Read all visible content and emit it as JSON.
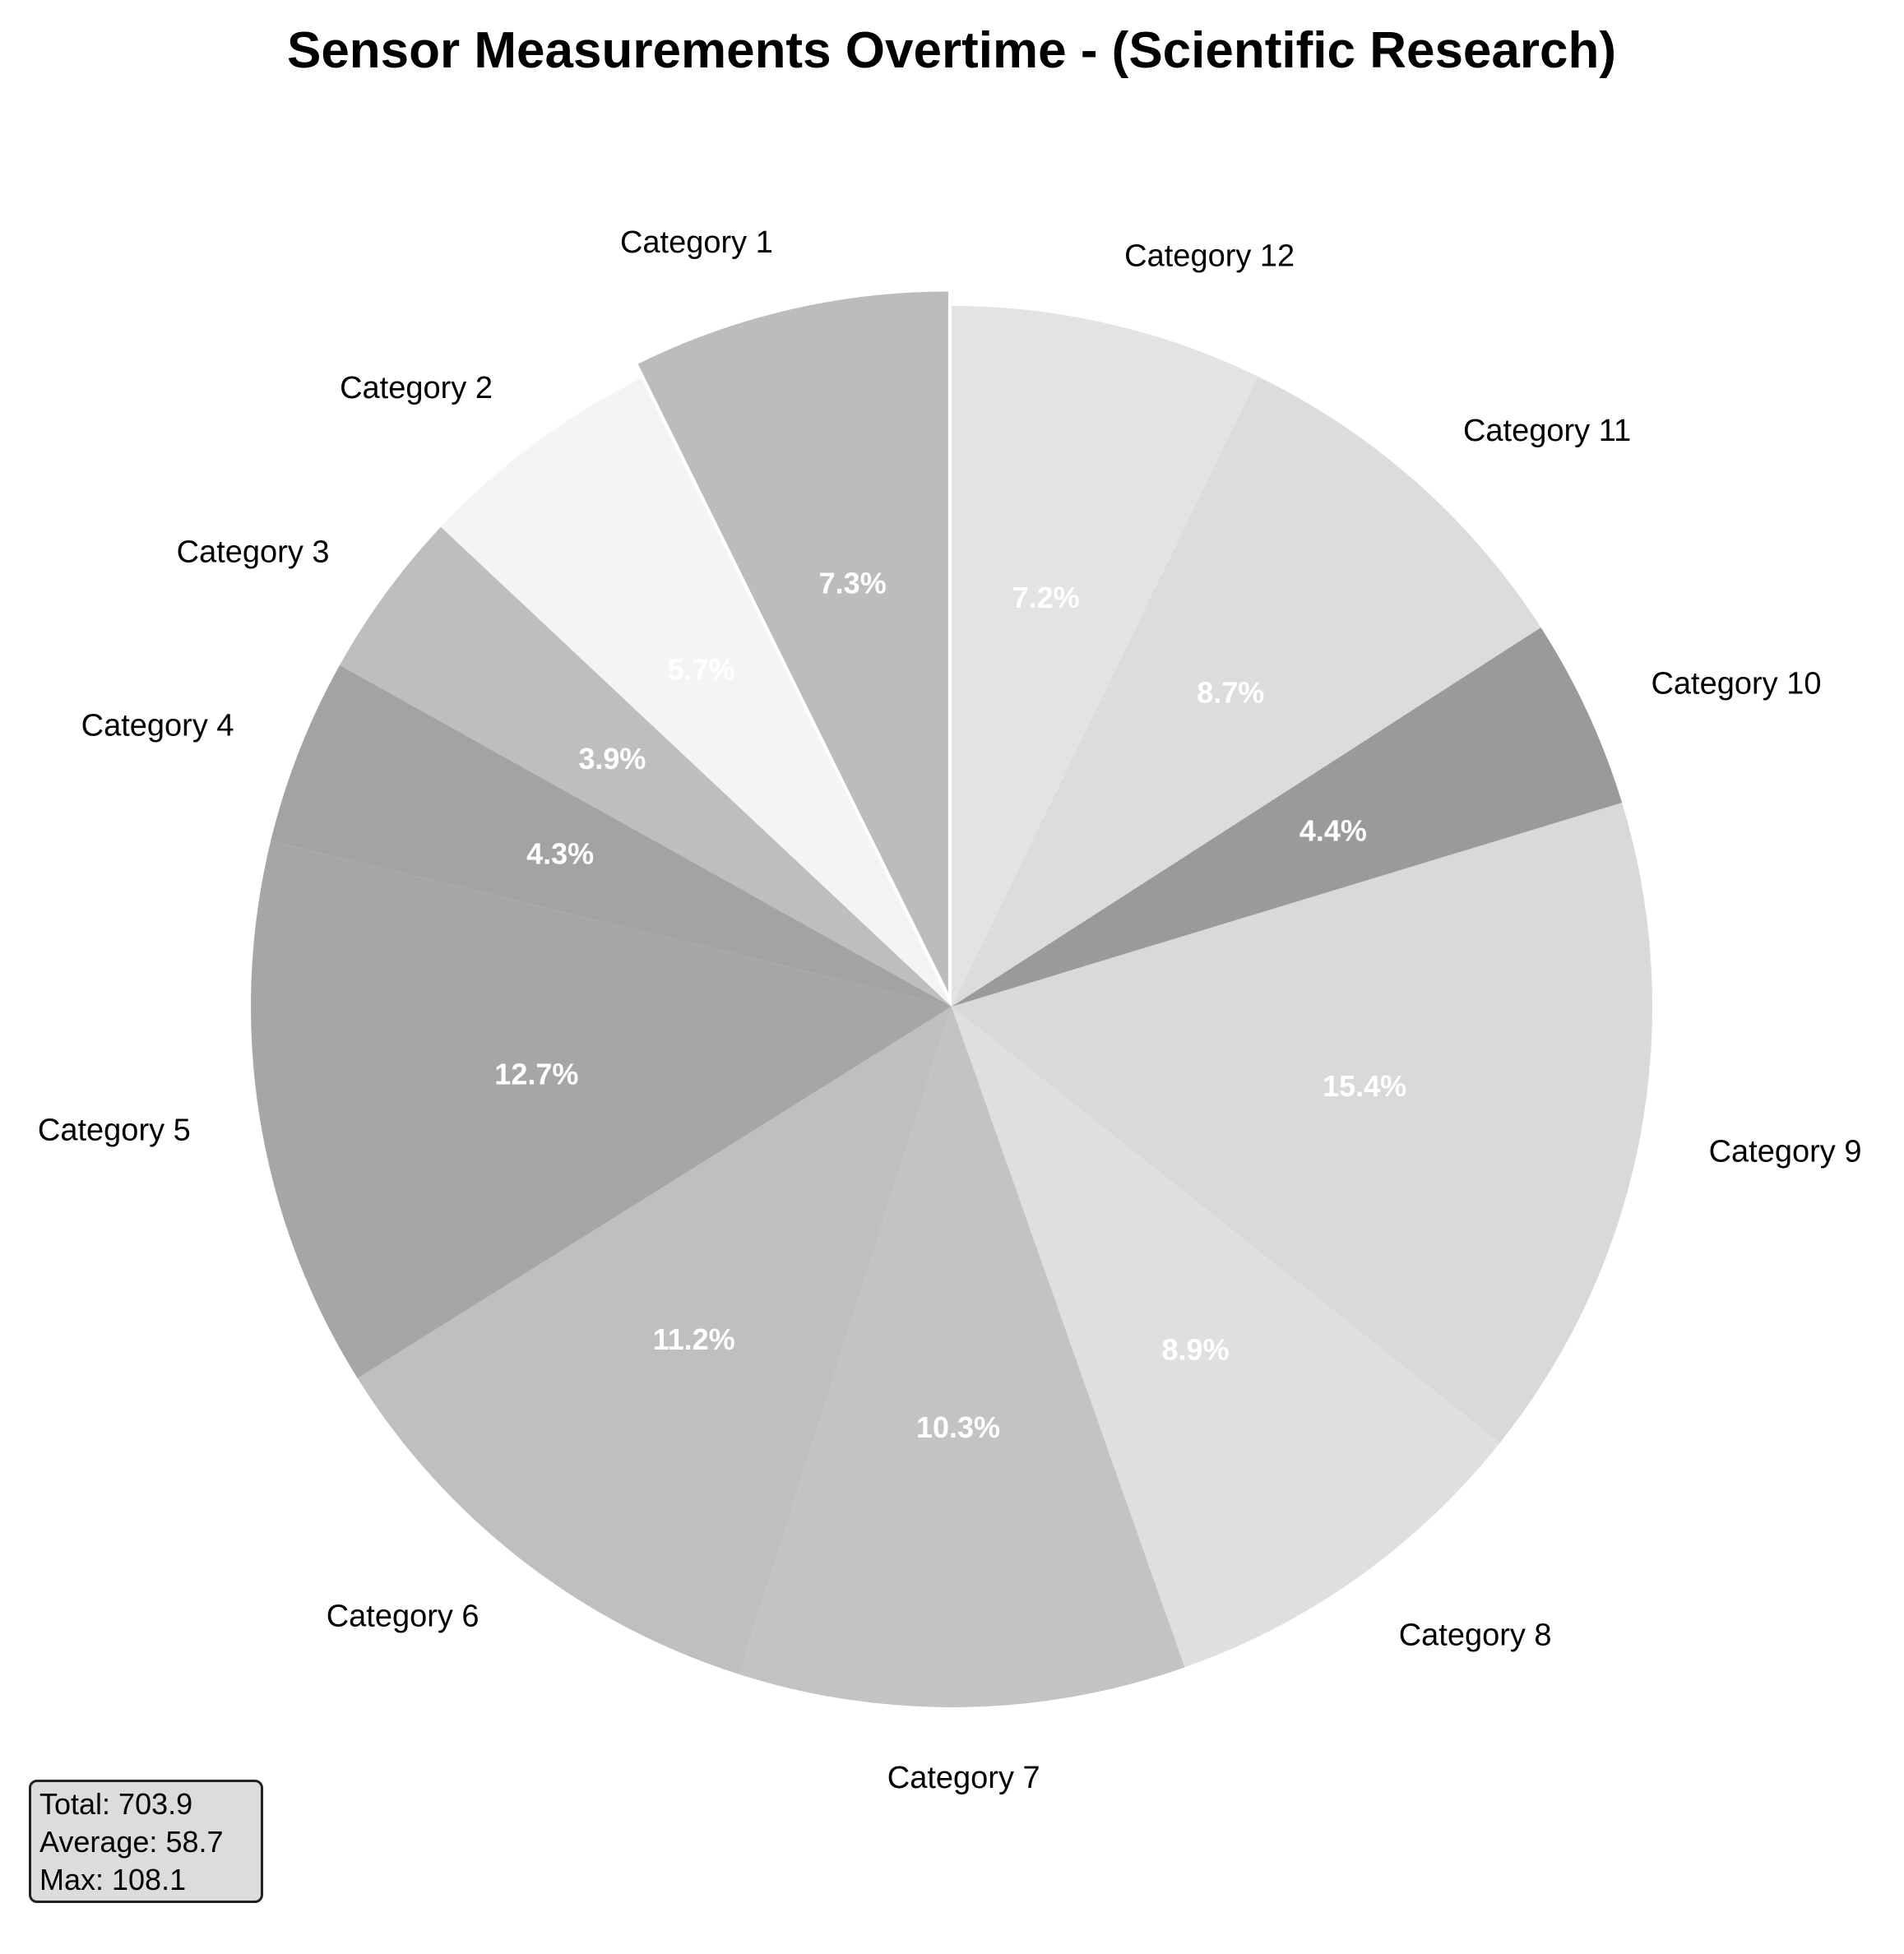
{
  "chart_data": {
    "type": "pie",
    "title": "Sensor Measurements Overtime - (Scientific Research)",
    "categories": [
      "Category 1",
      "Category 2",
      "Category 3",
      "Category 4",
      "Category 5",
      "Category 6",
      "Category 7",
      "Category 8",
      "Category 9",
      "Category 10",
      "Category 11",
      "Category 12"
    ],
    "percent_labels": [
      "7.3%",
      "5.7%",
      "3.9%",
      "4.3%",
      "12.7%",
      "11.2%",
      "10.3%",
      "8.9%",
      "15.4%",
      "4.4%",
      "8.7%",
      "7.2%"
    ],
    "values": [
      7.3,
      5.7,
      3.9,
      4.3,
      12.7,
      11.2,
      10.3,
      8.9,
      15.4,
      4.4,
      8.7,
      7.2
    ],
    "colors": [
      "#bcbcbc",
      "#f4f4f4",
      "#bebebe",
      "#a3a3a3",
      "#a6a6a6",
      "#bfbfbf",
      "#c3c3c3",
      "#dfdfdf",
      "#d9d9d9",
      "#9a9a9a",
      "#dcdcdc",
      "#e3e3e3"
    ],
    "exploded": [
      0
    ],
    "start_angle_deg": 90,
    "direction": "counterclockwise"
  },
  "stats": {
    "total": "Total: 703.9",
    "average": "Average: 58.7",
    "max": "Max: 108.1"
  }
}
